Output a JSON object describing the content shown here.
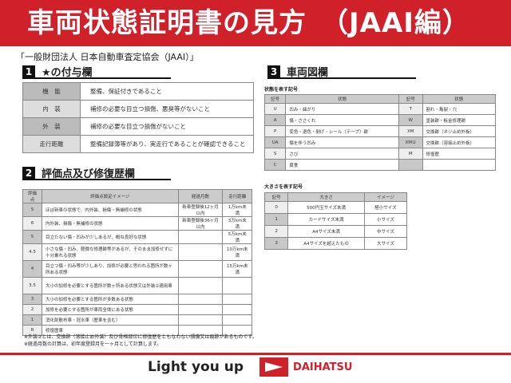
{
  "title": "車両状態証明書の見方　（JAAI編）",
  "organization": "「一般財団法人 日本自動車査定協会（JAAI）」",
  "section1": {
    "num": "1",
    "title": "★の付与欄",
    "rows": [
      {
        "key": "機　能",
        "value": "整備、保証付きであること"
      },
      {
        "key": "内　装",
        "value": "補修の必要な目立つ損傷、悪臭等がないこと"
      },
      {
        "key": "外　装",
        "value": "補修の必要な目立つ損傷がないこと"
      },
      {
        "key": "走行距離",
        "value": "整備記録簿等があり、実走行であることが確認できること"
      }
    ]
  },
  "section2": {
    "num": "2",
    "title": "評価点及び修復歴欄",
    "headers": [
      "評価点",
      "評価点設定イメージ",
      "経過月数",
      "走行距離"
    ],
    "rows": [
      [
        "S",
        "ほぼ新車の状態で、内外装、損傷・無補修の状態",
        "新車登録後12ヶ月以内",
        "1万km未満"
      ],
      [
        "6",
        "内外装、損傷・無補修の状態",
        "新車登録後36ヶ月以内",
        "3万km未満"
      ],
      [
        "5",
        "目立たない傷・凹みが少しあるが、概ね良好な状態",
        "",
        "5万km未満"
      ],
      [
        "4.5",
        "小さな傷・凹み、軽微な修理跡等があるが、そのまま加修せずに十分乗れる状態",
        "",
        "10万km未満"
      ],
      [
        "4",
        "目立つ傷・凹み等が少しあり、加修が必要と思われる箇所が数ヶ所ある状態",
        "",
        "15万km未満"
      ],
      [
        "3.5",
        "大小の加修を必要とする箇所が数ヶ所ある状態又は外装②適用車",
        "",
        ""
      ],
      [
        "3",
        "大小の加修を必要とする箇所が多数ある状態",
        "",
        ""
      ],
      [
        "2",
        "加修を必要とする箇所が車両全体にある状態",
        "",
        ""
      ],
      [
        "1",
        "消化剤散布車・冠水車（歴車を含む）",
        "",
        ""
      ],
      [
        "R",
        "修復歴車",
        "",
        ""
      ]
    ]
  },
  "notes": [
    "※外装②とは、交換跡（溶接止め外装）及び骨格部位に修復歴をともなわない損傷又は痕跡があるものです。",
    "※経過月数の計算は、初年度登録月を一ヶ月として計算します。"
  ],
  "section3": {
    "num": "3",
    "title": "車両図欄",
    "state_title": "状態を表す記号",
    "state_headers": [
      "記号",
      "状態",
      "記号",
      "状態"
    ],
    "state_rows": [
      [
        "U",
        "凹み・曲がり",
        "T",
        "割れ・亀裂・穴"
      ],
      [
        "A",
        "傷・ささくれ",
        "W",
        "塗装跡・板金修理跡"
      ],
      [
        "P",
        "変色・退色・剥げ・シール（テープ）跡",
        "XM",
        "交換跡（ネジ止め外板）"
      ],
      [
        "UA",
        "傷を伴う凹み",
        "XM②",
        "交換跡（溶接止め外板）"
      ],
      [
        "S",
        "さび",
        "M",
        "修復歴"
      ],
      [
        "C",
        "腐食",
        "",
        ""
      ]
    ],
    "size_title": "大きさを表す記号",
    "size_headers": [
      "記号",
      "大きさ",
      "イメージ"
    ],
    "size_rows": [
      [
        "0",
        "500円玉サイズ未満",
        "極小サイズ"
      ],
      [
        "1",
        "カードサイズ未満",
        "小サイズ"
      ],
      [
        "2",
        "A4サイズ未満",
        "中サイズ"
      ],
      [
        "3",
        "A4サイズを超えたもの",
        "大サイズ"
      ]
    ]
  },
  "footer": {
    "slogan": "Light you up",
    "brand": "DAIHATSU"
  },
  "colors": {
    "brand_red": "#d0202a"
  }
}
